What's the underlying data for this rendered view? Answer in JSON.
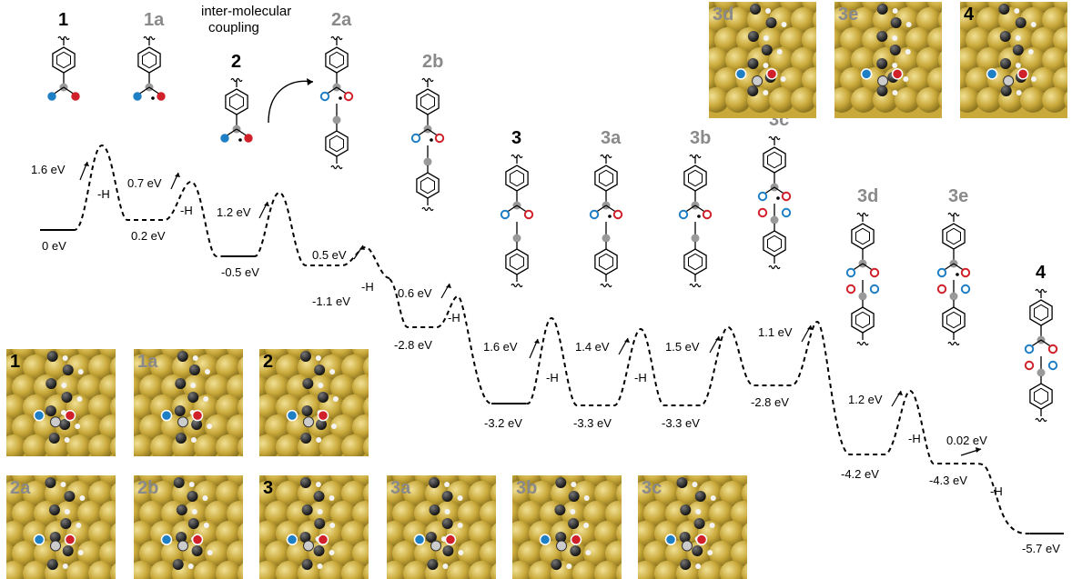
{
  "molecules": [
    {
      "id": "m1",
      "label": "1",
      "tone": "black",
      "tail": "none",
      "dot": false,
      "flip": false
    },
    {
      "id": "m1a",
      "label": "1a",
      "tone": "gray",
      "tail": "none",
      "dot": true,
      "flip": false
    },
    {
      "id": "m2",
      "label": "2",
      "tone": "black",
      "tail": "none",
      "dot": true,
      "flip": false
    },
    {
      "id": "m2a",
      "label": "2a",
      "tone": "gray",
      "tail": "dimer",
      "dot": true,
      "flip": false
    },
    {
      "id": "m2b",
      "label": "2b",
      "tone": "gray",
      "tail": "dimer",
      "dot": true,
      "flip": false
    },
    {
      "id": "m3",
      "label": "3",
      "tone": "black",
      "tail": "dimer",
      "dot": false,
      "flip": false
    },
    {
      "id": "m3a",
      "label": "3a",
      "tone": "gray",
      "tail": "dimer",
      "dot": true,
      "flip": false
    },
    {
      "id": "m3b",
      "label": "3b",
      "tone": "gray",
      "tail": "dimer",
      "dot": true,
      "flip": false
    },
    {
      "id": "m3c",
      "label": "3c",
      "tone": "gray",
      "tail": "ring",
      "dot": true,
      "flip": false
    },
    {
      "id": "m3d",
      "label": "3d",
      "tone": "gray",
      "tail": "ring",
      "dot": false,
      "flip": false
    },
    {
      "id": "m3e",
      "label": "3e",
      "tone": "gray",
      "tail": "ring",
      "dot": true,
      "flip": false
    },
    {
      "id": "m4",
      "label": "4",
      "tone": "black",
      "tail": "ring",
      "dot": false,
      "flip": false
    }
  ],
  "coupling_label": [
    "inter-molecular",
    "coupling"
  ],
  "levels": [
    {
      "label": "0 eV",
      "energy": 0
    },
    {
      "label": "0.2 eV",
      "energy": 0.2
    },
    {
      "label": "-0.5 eV",
      "energy": -0.5
    },
    {
      "label": "-1.1 eV",
      "energy": -1.1
    },
    {
      "label": "-2.8 eV",
      "energy": -2.8
    },
    {
      "label": "-3.2 eV",
      "energy": -3.2
    },
    {
      "label": "-3.3 eV",
      "energy": -3.3
    },
    {
      "label": "-3.3 eV",
      "energy": -3.3
    },
    {
      "label": "-2.8 eV",
      "energy": -2.8
    },
    {
      "label": "-4.2 eV",
      "energy": -4.2
    },
    {
      "label": "-4.3 eV",
      "energy": -4.3
    },
    {
      "label": "-5.7 eV",
      "energy": -5.7
    }
  ],
  "barriers": [
    {
      "label": "1.6 eV",
      "step": "-H"
    },
    {
      "label": "0.7 eV",
      "step": "-H"
    },
    {
      "label": "1.2 eV",
      "step": ""
    },
    {
      "label": "0.5 eV",
      "step": "-H"
    },
    {
      "label": "0.6 eV",
      "step": "-H"
    },
    {
      "label": "1.6 eV",
      "step": "-H"
    },
    {
      "label": "1.4 eV",
      "step": "-H"
    },
    {
      "label": "1.5 eV",
      "step": ""
    },
    {
      "label": "1.1 eV",
      "step": ""
    },
    {
      "label": "1.2 eV",
      "step": "-H"
    },
    {
      "label": "0.02 eV",
      "step": "-H"
    }
  ],
  "snapshots_top": [
    {
      "label": "3d",
      "tone": "gray"
    },
    {
      "label": "3e",
      "tone": "gray"
    },
    {
      "label": "4",
      "tone": "black"
    }
  ],
  "snapshots_bottom": [
    {
      "label": "1",
      "tone": "black"
    },
    {
      "label": "1a",
      "tone": "gray"
    },
    {
      "label": "2",
      "tone": "black"
    },
    {
      "label": "2a",
      "tone": "gray"
    },
    {
      "label": "2b",
      "tone": "gray"
    },
    {
      "label": "3",
      "tone": "black"
    },
    {
      "label": "3a",
      "tone": "gray"
    },
    {
      "label": "3b",
      "tone": "gray"
    },
    {
      "label": "3c",
      "tone": "gray"
    }
  ],
  "colors": {
    "gold": "#c9a93a",
    "gold_light": "#e7d27a",
    "red": "#d0202a",
    "blue": "#1f7fc4",
    "gray_label": "#8a8a8a",
    "carbon": "#222222"
  }
}
